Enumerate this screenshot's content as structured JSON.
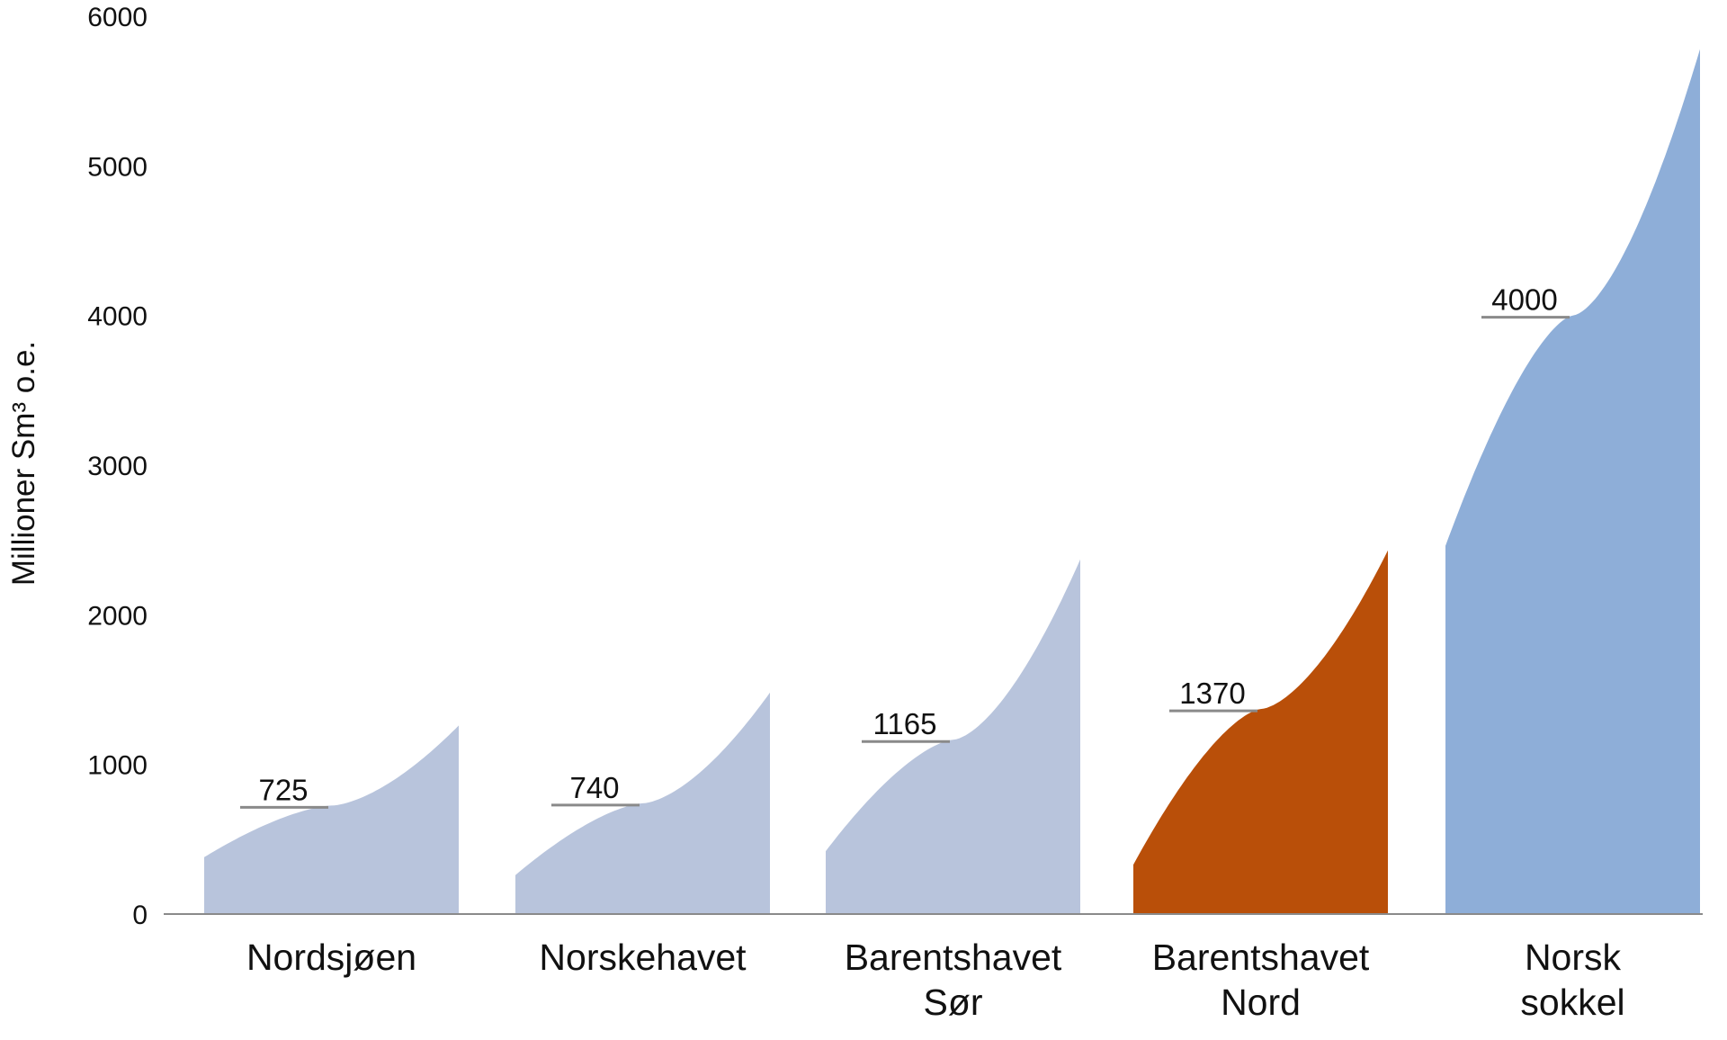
{
  "chart_data": {
    "type": "area",
    "title": "",
    "xlabel": "",
    "ylabel": "Millioner Sm³ o.e.",
    "ylim": [
      0,
      6000
    ],
    "yticks": [
      "0",
      "1000",
      "2000",
      "3000",
      "4000",
      "5000",
      "6000"
    ],
    "grid": false,
    "legend": "none",
    "categories": [
      {
        "label_lines": [
          "Nordsjøen"
        ],
        "expected": 725,
        "expected_label": "725",
        "low": 380,
        "high": 1260,
        "color": "#b8c4dc"
      },
      {
        "label_lines": [
          "Norskehavet"
        ],
        "expected": 740,
        "expected_label": "740",
        "low": 260,
        "high": 1480,
        "color": "#b8c4dc"
      },
      {
        "label_lines": [
          "Barentshavet",
          "Sør"
        ],
        "expected": 1165,
        "expected_label": "1165",
        "low": 420,
        "high": 2370,
        "color": "#b8c4dc"
      },
      {
        "label_lines": [
          "Barentshavet",
          "Nord"
        ],
        "expected": 1370,
        "expected_label": "1370",
        "low": 330,
        "high": 2430,
        "color": "#b94f09"
      },
      {
        "label_lines": [
          "Norsk",
          "sokkel"
        ],
        "expected": 4000,
        "expected_label": "4000",
        "low": 2460,
        "high": 5780,
        "color": "#8eaed8"
      }
    ]
  }
}
